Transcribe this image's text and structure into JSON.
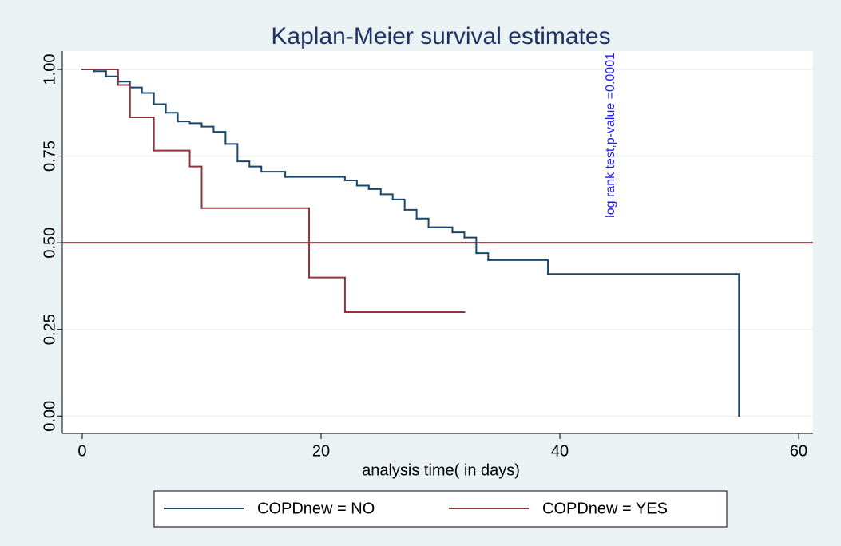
{
  "chart_data": {
    "type": "step",
    "title": "Kaplan-Meier survival estimates",
    "x_label": "analysis time( in days)",
    "annotation": "log rank test,p-value =0.0001",
    "xlim": [
      -1.67,
      61.2
    ],
    "ylim": [
      -0.05,
      1.053
    ],
    "xticks": [
      0,
      20,
      40,
      60
    ],
    "yticks": [
      {
        "value": 0,
        "label": "0.00"
      },
      {
        "value": 0.25,
        "label": "0.25"
      },
      {
        "value": 0.5,
        "label": "0.50"
      },
      {
        "value": 0.75,
        "label": "0.75"
      },
      {
        "value": 1,
        "label": "1.00"
      }
    ],
    "grid": true,
    "reference_line": {
      "value": 0.5,
      "color": "#90353b"
    },
    "series": [
      {
        "name": "COPDnew = NO",
        "color": "#1a476f",
        "x": [
          0,
          1,
          2,
          3,
          4,
          5,
          6,
          7,
          8,
          9,
          10,
          11,
          12,
          13,
          14,
          15,
          17,
          22,
          23,
          24,
          25,
          26,
          27,
          28,
          29,
          31,
          32,
          33,
          34,
          39,
          55
        ],
        "values": [
          1.0,
          0.995,
          0.98,
          0.965,
          0.948,
          0.932,
          0.9,
          0.875,
          0.85,
          0.845,
          0.835,
          0.82,
          0.785,
          0.735,
          0.72,
          0.705,
          0.69,
          0.68,
          0.665,
          0.655,
          0.64,
          0.625,
          0.595,
          0.57,
          0.545,
          0.53,
          0.515,
          0.47,
          0.45,
          0.41,
          0.0
        ]
      },
      {
        "name": "COPDnew = YES",
        "color": "#90353b",
        "x": [
          0,
          3,
          4,
          6,
          9,
          10,
          19,
          22,
          32
        ],
        "values": [
          1.0,
          0.955,
          0.862,
          0.766,
          0.72,
          0.6,
          0.4,
          0.3,
          0.3
        ]
      }
    ]
  }
}
